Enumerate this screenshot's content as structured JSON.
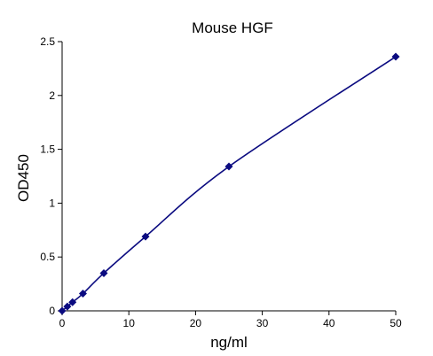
{
  "chart_data": {
    "type": "scatter",
    "title": "Mouse HGF",
    "xlabel": "ng/ml",
    "ylabel": "OD450",
    "xlim": [
      0,
      50
    ],
    "ylim": [
      0,
      2.5
    ],
    "xticks": [
      0,
      10,
      20,
      30,
      40,
      50
    ],
    "yticks": [
      0,
      0.5,
      1,
      1.5,
      2,
      2.5
    ],
    "ytick_labels": [
      "0",
      "0.5",
      "1",
      "1.5",
      "2",
      "2.5"
    ],
    "grid": false,
    "series": [
      {
        "x": [
          0,
          0.78,
          1.56,
          3.12,
          6.25,
          12.5,
          25,
          50
        ],
        "y": [
          0.0,
          0.04,
          0.08,
          0.16,
          0.35,
          0.69,
          1.34,
          2.36
        ],
        "marker": "diamond",
        "line": "smooth",
        "color": "#0b0b80"
      }
    ]
  }
}
